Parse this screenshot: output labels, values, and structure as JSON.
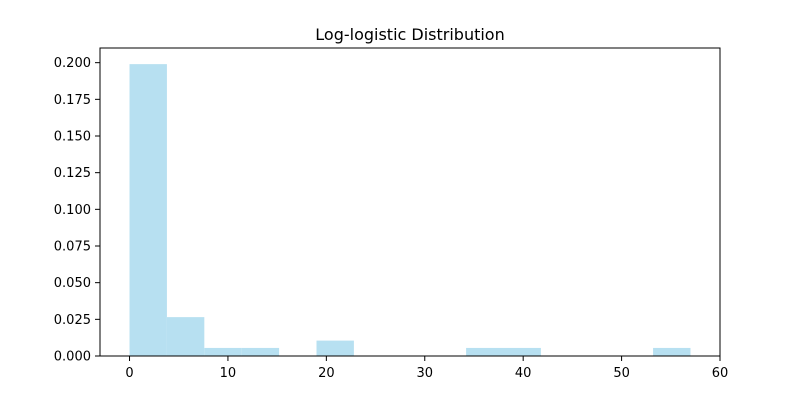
{
  "chart_data": {
    "type": "bar",
    "title": "Log-logistic Distribution",
    "xlabel": "",
    "ylabel": "",
    "xlim": [
      -3,
      60
    ],
    "ylim": [
      0,
      0.21
    ],
    "x_ticks": [
      0,
      10,
      20,
      30,
      40,
      50,
      60
    ],
    "x_tick_labels": [
      "0",
      "10",
      "20",
      "30",
      "40",
      "50",
      "60"
    ],
    "y_ticks": [
      0,
      0.025,
      0.05,
      0.075,
      0.1,
      0.125,
      0.15,
      0.175,
      0.2
    ],
    "y_tick_labels": [
      "0.000",
      "0.025",
      "0.050",
      "0.075",
      "0.100",
      "0.125",
      "0.150",
      "0.175",
      "0.200"
    ],
    "grid": false,
    "bar_color": "#b7e0f1",
    "bins": [
      {
        "x0": 0,
        "x1": 3.8,
        "value": 0.199
      },
      {
        "x0": 3.8,
        "x1": 7.6,
        "value": 0.0265
      },
      {
        "x0": 7.6,
        "x1": 11.4,
        "value": 0.0055
      },
      {
        "x0": 11.4,
        "x1": 15.2,
        "value": 0.0055
      },
      {
        "x0": 15.2,
        "x1": 19.0,
        "value": 0
      },
      {
        "x0": 19.0,
        "x1": 22.8,
        "value": 0.0105
      },
      {
        "x0": 22.8,
        "x1": 26.6,
        "value": 0
      },
      {
        "x0": 26.6,
        "x1": 30.4,
        "value": 0
      },
      {
        "x0": 30.4,
        "x1": 34.2,
        "value": 0
      },
      {
        "x0": 34.2,
        "x1": 38.0,
        "value": 0.0055
      },
      {
        "x0": 38.0,
        "x1": 41.8,
        "value": 0.0055
      },
      {
        "x0": 41.8,
        "x1": 45.6,
        "value": 0
      },
      {
        "x0": 45.6,
        "x1": 49.4,
        "value": 0
      },
      {
        "x0": 49.4,
        "x1": 53.2,
        "value": 0
      },
      {
        "x0": 53.2,
        "x1": 57.0,
        "value": 0.0055
      }
    ]
  }
}
